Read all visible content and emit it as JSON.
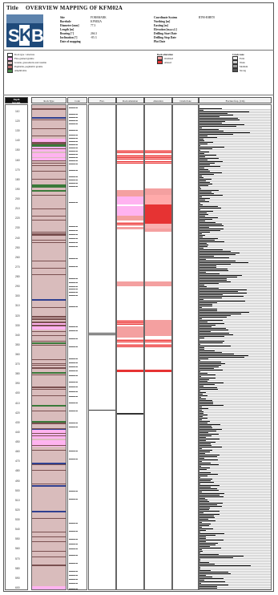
{
  "header": {
    "label": "Title",
    "title": "OVERVIEW MAPPING OF KFM02A",
    "logo_text": [
      "S",
      "K",
      "B"
    ]
  },
  "info_left": [
    {
      "label": "Site",
      "value": "FORSMARK"
    },
    {
      "label": "Borehole",
      "value": "KFM02A"
    },
    {
      "label": "Diameter [mm]",
      "value": "77.3"
    },
    {
      "label": "Length [m]",
      "value": ""
    },
    {
      "label": "Bearing [°]",
      "value": "266.3"
    },
    {
      "label": "Inclination [°]",
      "value": "-85.3"
    },
    {
      "label": "Date of mapping",
      "value": ""
    }
  ],
  "info_right": [
    {
      "label": "Coordinate System",
      "value": "RT90-RHB70"
    },
    {
      "label": "Northing [m]",
      "value": ""
    },
    {
      "label": "Easting [m]",
      "value": ""
    },
    {
      "label": "Elevation [m.a.s.l.]",
      "value": ""
    },
    {
      "label": "Drilling Start Date",
      "value": ""
    },
    {
      "label": "Drilling Stop Date",
      "value": ""
    },
    {
      "label": "Plot Date",
      "value": ""
    }
  ],
  "colors": {
    "frame": "#555555",
    "logo": "#1f4a7a",
    "rock_base": "#d9bcbc",
    "pink": "#ffb3f0",
    "red": "#e63333",
    "salmon": "#f4a0a0",
    "dark": "#111111"
  },
  "columns": [
    {
      "id": "depth",
      "label": "Depth\n(m) Adj."
    },
    {
      "id": "rock",
      "label": "Rock Type"
    },
    {
      "id": "code",
      "label": "Code"
    },
    {
      "id": "fractures",
      "label": "Frac."
    },
    {
      "id": "crush",
      "label": "Rock Alteration"
    },
    {
      "id": "alteration",
      "label": "Alteration"
    },
    {
      "id": "crush2",
      "label": "Crush Zone"
    },
    {
      "id": "rqd",
      "label": "Fracture freq. (1/m)"
    }
  ],
  "depth_labels": [
    "110",
    "120",
    "130",
    "140",
    "150",
    "160",
    "170",
    "180",
    "190",
    "200",
    "210",
    "220",
    "230",
    "240",
    "250",
    "260",
    "270",
    "280",
    "290",
    "300",
    "310",
    "320",
    "330",
    "340",
    "350",
    "360",
    "370",
    "380",
    "390",
    "400",
    "410",
    "420",
    "430",
    "440",
    "450",
    "460",
    "470",
    "480",
    "490",
    "500",
    "510",
    "520",
    "530",
    "540",
    "550",
    "560",
    "570",
    "580",
    "590",
    "600",
    "610",
    "620",
    "630",
    "640",
    "650",
    "660",
    "670",
    "680",
    "690",
    "700",
    "710",
    "720",
    "730",
    "740",
    "750",
    "760",
    "770",
    "780",
    "790",
    "800",
    "810",
    "820",
    "830",
    "840",
    "850",
    "860",
    "870",
    "880",
    "890",
    "900",
    "910",
    "920",
    "930",
    "940",
    "950",
    "960",
    "970",
    "980",
    "990",
    "1000"
  ],
  "depth_labels_shown": [
    "110",
    "120",
    "130",
    "140",
    "150",
    "160",
    "170",
    "180",
    "190",
    "200",
    "210",
    "220",
    "230",
    "240",
    "250",
    "260",
    "270",
    "280",
    "290",
    "300",
    "310",
    "320",
    "330",
    "340",
    "350",
    "360",
    "370",
    "380",
    "390",
    "400",
    "410",
    "420",
    "430",
    "440",
    "450",
    "460",
    "470",
    "480",
    "490",
    "500",
    "510",
    "520",
    "530",
    "540",
    "550",
    "560",
    "570",
    "580",
    "590",
    "600"
  ],
  "legend": {
    "left": [
      "Rock type / structure",
      "Fine-grained granite",
      "Granite, granodiorite and tonalite",
      "Pegmatite, pegmatitic granite",
      "Amphibolite"
    ],
    "mid_title": "Rock alteration",
    "mid": [
      "Oxidized",
      "Altered"
    ],
    "right_title": "Crush zone",
    "right": [
      "Faint",
      "Weak",
      "Medium",
      "Strong"
    ]
  }
}
